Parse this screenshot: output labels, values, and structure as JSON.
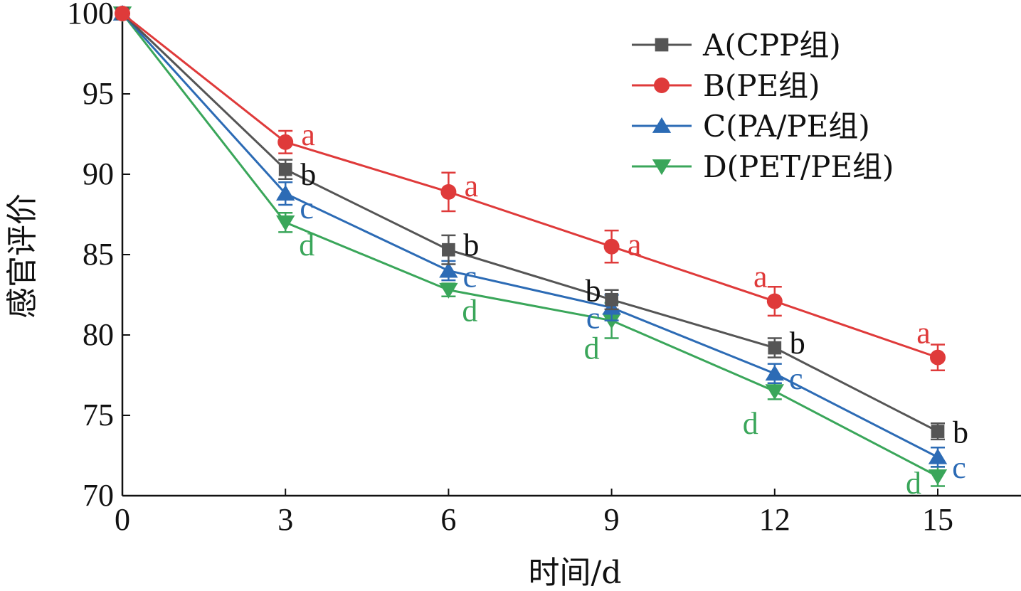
{
  "chart_data": {
    "type": "line",
    "xlabel": "时间/d",
    "ylabel": "感官评价",
    "xlim": [
      0,
      16.5
    ],
    "ylim": [
      70,
      100
    ],
    "x": [
      0,
      3,
      6,
      9,
      12,
      15
    ],
    "x_tick_labels": [
      "0",
      "3",
      "6",
      "9",
      "12",
      "15"
    ],
    "y_ticks": [
      70,
      75,
      80,
      85,
      90,
      95,
      100
    ],
    "y_tick_labels": [
      "70",
      "75",
      "80",
      "85",
      "90",
      "95",
      "100"
    ],
    "legend_position": "top-right",
    "grid": false,
    "series": [
      {
        "name": "A(CPP组)",
        "color": "#555555",
        "marker": "square",
        "values": [
          100,
          90.3,
          85.3,
          82.2,
          79.2,
          74.0
        ],
        "errors": [
          0,
          0.6,
          0.9,
          0.6,
          0.6,
          0.5
        ],
        "labels": [
          "",
          "b",
          "b",
          "b",
          "b",
          "b"
        ]
      },
      {
        "name": "B(PE组)",
        "color": "#df3a3a",
        "marker": "circle",
        "values": [
          100,
          92.0,
          88.9,
          85.5,
          82.1,
          78.6
        ],
        "errors": [
          0,
          0.7,
          1.2,
          1.0,
          0.9,
          0.8
        ],
        "labels": [
          "",
          "a",
          "a",
          "a",
          "a",
          "a"
        ]
      },
      {
        "name": "C(PA/PE组)",
        "color": "#2c6bb5",
        "marker": "triangle-up",
        "values": [
          100,
          88.8,
          84.0,
          81.7,
          77.6,
          72.4
        ],
        "errors": [
          0,
          0.7,
          0.6,
          0.8,
          0.6,
          0.6
        ],
        "labels": [
          "",
          "c",
          "c",
          "c",
          "c",
          "c"
        ]
      },
      {
        "name": "D(PET/PE组)",
        "color": "#3aa65a",
        "marker": "triangle-down",
        "values": [
          100,
          87.0,
          82.8,
          80.9,
          76.5,
          71.2
        ],
        "errors": [
          0,
          0.6,
          0.4,
          1.1,
          0.5,
          0.6
        ],
        "labels": [
          "",
          "d",
          "d",
          "d",
          "d",
          "d"
        ]
      }
    ]
  }
}
